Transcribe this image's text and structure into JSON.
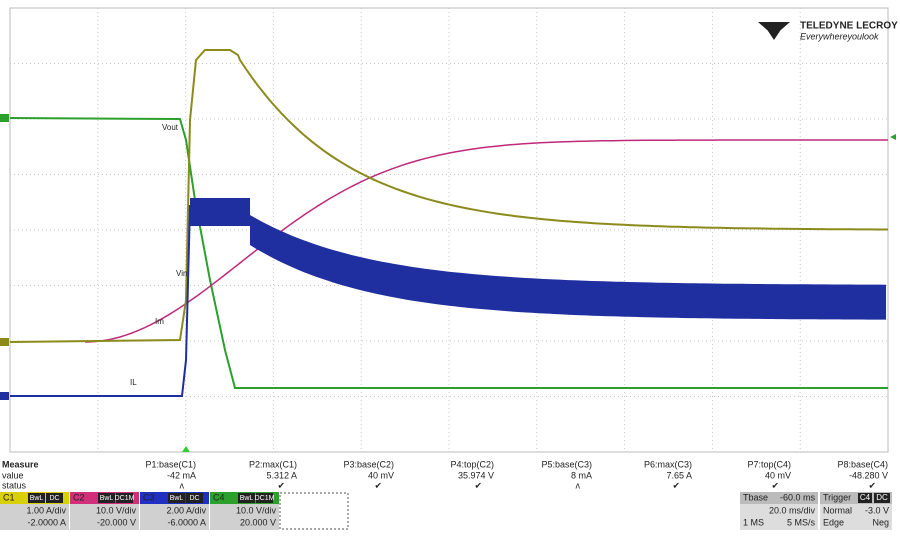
{
  "logo": {
    "brand": "TELEDYNE LECROY",
    "tagline": "Everywhereyoulook"
  },
  "trace_labels": [
    "Vout",
    "Vin",
    "Im",
    "IL"
  ],
  "measure": {
    "header": [
      "Measure",
      "P1:base(C1)",
      "P2:max(C1)",
      "P3:base(C2)",
      "P4:top(C2)",
      "P5:base(C3)",
      "P6:max(C3)",
      "P7:top(C4)",
      "P8:base(C4)"
    ],
    "rows": [
      [
        "value",
        "-42 mA",
        "5.312 A",
        "40 mV",
        "35.974 V",
        "8 mA",
        "7.65 A",
        "40 mV",
        "-48.280 V"
      ],
      [
        "status",
        "ʌ",
        "✔",
        "✔",
        "✔",
        "ʌ",
        "✔",
        "✔",
        "✔"
      ]
    ]
  },
  "channels": [
    {
      "name": "C1",
      "flags": [
        "BwL",
        "DC"
      ],
      "scale": "1.00 A/div",
      "offset": "-2.0000 A"
    },
    {
      "name": "C2",
      "flags": [
        "BwL",
        "DC1M"
      ],
      "scale": "10.0 V/div",
      "offset": "-20.000 V"
    },
    {
      "name": "C3",
      "flags": [
        "BwL",
        "DC"
      ],
      "scale": "2.00 A/div",
      "offset": "-6.0000 A"
    },
    {
      "name": "C4",
      "flags": [
        "BwL",
        "DC1M"
      ],
      "scale": "10.0 V/div",
      "offset": "20.000 V"
    }
  ],
  "timebase": {
    "label": "Tbase",
    "delay": "-60.0 ms",
    "div": "20.0 ms/div",
    "samples": "1 MS",
    "rate": "5 MS/s"
  },
  "trigger": {
    "label": "Trigger",
    "source": "C4",
    "coupling": "DC",
    "mode": "Normal",
    "level": "-3.0 V",
    "type": "Edge",
    "slope": "Neg"
  }
}
